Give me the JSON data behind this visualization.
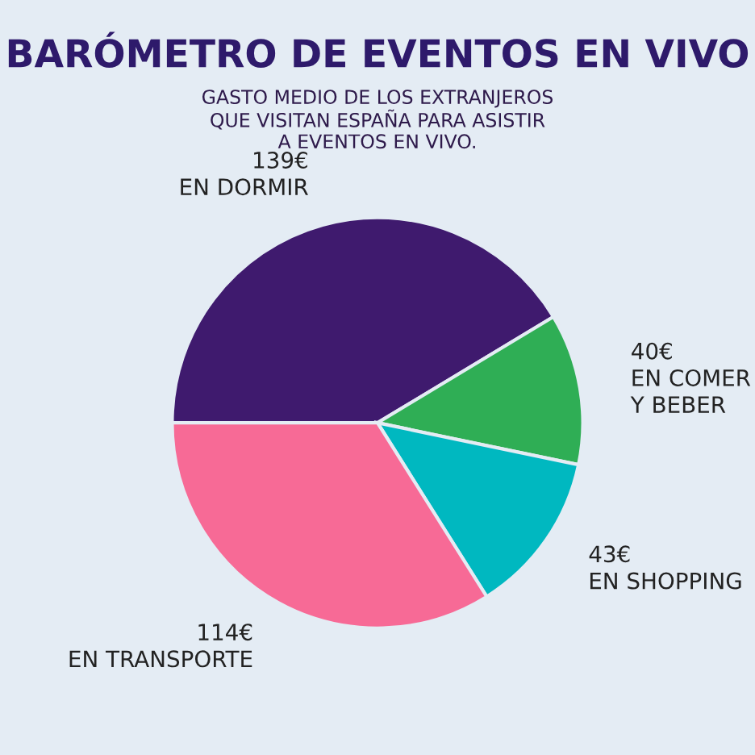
{
  "chart_data": {
    "type": "pie",
    "title": "BARÓMETRO DE EVENTOS EN VIVO",
    "subtitle": "GASTO MEDIO DE LOS EXTRANJEROS\nQUE VISITAN ESPAÑA PARA ASISTIR\nA EVENTOS EN VIVO.",
    "categories": [
      "EN DORMIR",
      "EN COMER\nY BEBER",
      "EN SHOPPING",
      "EN TRANSPORTE"
    ],
    "values": [
      139,
      40,
      43,
      114
    ],
    "value_labels": [
      "139€",
      "40€",
      "43€",
      "114€"
    ],
    "colors": [
      "#3f1a6e",
      "#2fae55",
      "#00b8c0",
      "#f76a96"
    ]
  }
}
